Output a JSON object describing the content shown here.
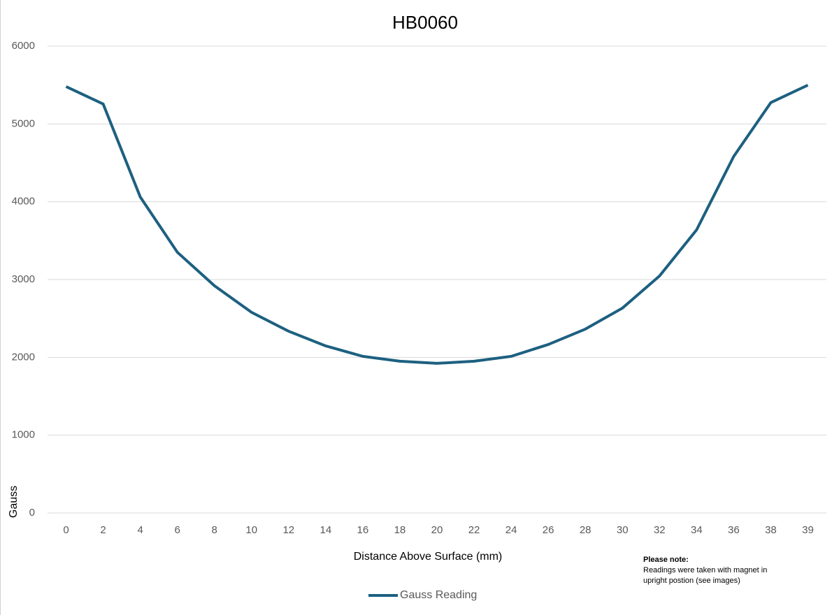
{
  "chart_data": {
    "type": "line",
    "title": "HB0060",
    "x_label": "Distance Above Surface (mm)",
    "y_label": "Gauss",
    "categories": [
      "0",
      "2",
      "4",
      "6",
      "8",
      "10",
      "12",
      "14",
      "16",
      "18",
      "20",
      "22",
      "24",
      "26",
      "28",
      "30",
      "32",
      "34",
      "36",
      "38",
      "39"
    ],
    "series": [
      {
        "name": "Gauss Reading",
        "color": "#1d6080",
        "values": [
          5480,
          5256,
          4061,
          3351,
          2920,
          2579,
          2336,
          2147,
          2013,
          1950,
          1923,
          1950,
          2013,
          2165,
          2363,
          2633,
          3046,
          3639,
          4582,
          5274,
          5499
        ]
      }
    ],
    "ylim": [
      0,
      6000
    ],
    "yticks": [
      0,
      1000,
      2000,
      3000,
      4000,
      5000,
      6000
    ],
    "grid": true,
    "legend": "bottom",
    "note": {
      "title": "Please note:",
      "lines": [
        "Readings were taken with magnet in",
        "upright postion (see images)"
      ]
    }
  }
}
